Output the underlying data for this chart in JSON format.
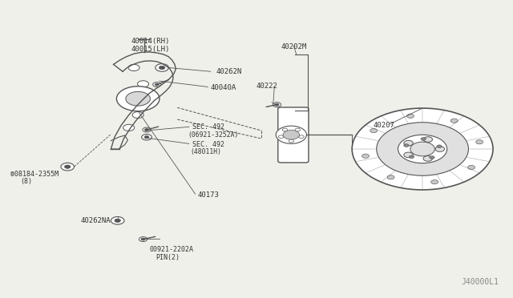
{
  "bg_color": "#f0f0eb",
  "line_color": "#555555",
  "text_color": "#333333",
  "title": "",
  "watermark": "J40000L1",
  "labels": {
    "40014RH_40015LH_1": "40014(RH)",
    "40014RH_40015LH_2": "40015(LH)",
    "40262N": "40262N",
    "40040A": "40040A",
    "SEC492a_1": "SEC. 492",
    "SEC492a_2": "(06921-3252A)",
    "SEC492b_1": "SEC. 492",
    "SEC492b_2": "(48011H)",
    "40173": "40173",
    "08184_2355M_1": "®08184-2355M",
    "08184_2355M_2": "(8)",
    "40262NA": "40262NA",
    "00921_2202A_1": "00921-2202A",
    "00921_2202A_2": "PIN(2)",
    "40202M": "40202M",
    "40222": "40222",
    "40207": "40207"
  }
}
